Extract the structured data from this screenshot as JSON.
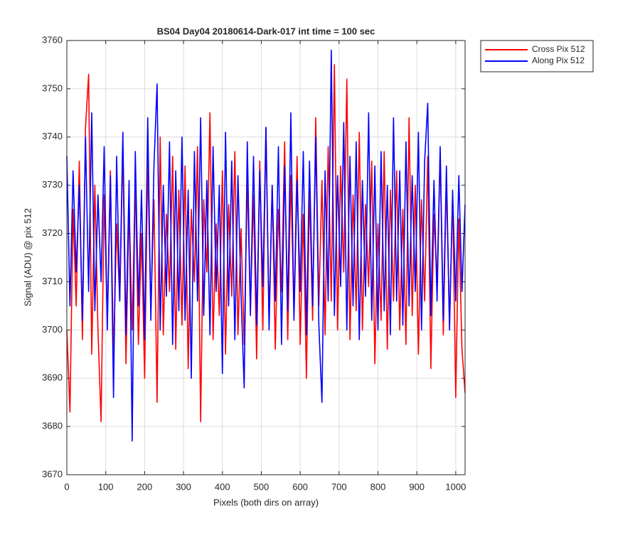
{
  "chart_data": {
    "type": "line",
    "title": "BS04 Day04 20180614-Dark-017 int time = 100 sec",
    "x_label": "Pixels (both dirs on array)",
    "y_label": "Signal (ADU) @ pix 512",
    "x": [
      0,
      8,
      16,
      24,
      32,
      40,
      48,
      56,
      64,
      72,
      80,
      88,
      96,
      104,
      112,
      120,
      128,
      136,
      144,
      152,
      160,
      168,
      176,
      184,
      192,
      200,
      208,
      216,
      224,
      232,
      240,
      248,
      256,
      264,
      272,
      280,
      288,
      296,
      304,
      312,
      320,
      328,
      336,
      344,
      352,
      360,
      368,
      376,
      384,
      392,
      400,
      408,
      416,
      424,
      432,
      440,
      448,
      456,
      464,
      472,
      480,
      488,
      496,
      504,
      512,
      520,
      528,
      536,
      544,
      552,
      560,
      568,
      576,
      584,
      592,
      600,
      608,
      616,
      624,
      632,
      640,
      648,
      656,
      664,
      672,
      680,
      688,
      696,
      704,
      712,
      720,
      728,
      736,
      744,
      752,
      760,
      768,
      776,
      784,
      792,
      800,
      808,
      816,
      824,
      832,
      840,
      848,
      856,
      864,
      872,
      880,
      888,
      896,
      904,
      912,
      920,
      928,
      936,
      944,
      952,
      960,
      968,
      976,
      984,
      992,
      1000,
      1008,
      1016,
      1024
    ],
    "series": [
      {
        "name": "Cross Pix 512",
        "color": "#ff0000",
        "values": [
          3700,
          3683,
          3725,
          3705,
          3735,
          3698,
          3742,
          3753,
          3695,
          3730,
          3700,
          3681,
          3728,
          3702,
          3733,
          3694,
          3722,
          3706,
          3738,
          3693,
          3726,
          3700,
          3731,
          3697,
          3720,
          3690,
          3735,
          3704,
          3727,
          3685,
          3740,
          3699,
          3724,
          3708,
          3736,
          3696,
          3729,
          3701,
          3734,
          3692,
          3725,
          3710,
          3738,
          3681,
          3727,
          3712,
          3745,
          3698,
          3722,
          3703,
          3733,
          3695,
          3726,
          3707,
          3737,
          3699,
          3721,
          3697,
          3731,
          3704,
          3728,
          3694,
          3735,
          3700,
          3742,
          3702,
          3730,
          3696,
          3725,
          3708,
          3739,
          3698,
          3732,
          3703,
          3736,
          3697,
          3724,
          3690,
          3729,
          3702,
          3744,
          3705,
          3731,
          3699,
          3738,
          3706,
          3755,
          3700,
          3734,
          3712,
          3752,
          3698,
          3728,
          3704,
          3741,
          3700,
          3726,
          3709,
          3735,
          3693,
          3722,
          3702,
          3737,
          3696,
          3729,
          3706,
          3733,
          3700,
          3725,
          3697,
          3744,
          3703,
          3730,
          3695,
          3727,
          3706,
          3736,
          3692,
          3724,
          3710,
          3737,
          3699,
          3731,
          3701,
          3728,
          3686,
          3723,
          3696,
          3687
        ]
      },
      {
        "name": "Along Pix 512",
        "color": "#0000ff",
        "values": [
          3736,
          3705,
          3733,
          3712,
          3730,
          3702,
          3740,
          3708,
          3745,
          3704,
          3728,
          3710,
          3738,
          3700,
          3732,
          3686,
          3736,
          3706,
          3741,
          3699,
          3731,
          3677,
          3737,
          3705,
          3729,
          3698,
          3744,
          3702,
          3734,
          3751,
          3700,
          3730,
          3707,
          3739,
          3697,
          3733,
          3704,
          3740,
          3702,
          3729,
          3690,
          3737,
          3706,
          3744,
          3703,
          3731,
          3699,
          3738,
          3708,
          3730,
          3691,
          3741,
          3705,
          3735,
          3698,
          3732,
          3707,
          3688,
          3739,
          3703,
          3736,
          3701,
          3733,
          3709,
          3742,
          3700,
          3730,
          3706,
          3738,
          3697,
          3734,
          3704,
          3745,
          3702,
          3731,
          3708,
          3737,
          3699,
          3735,
          3705,
          3740,
          3701,
          3685,
          3733,
          3706,
          3758,
          3703,
          3732,
          3709,
          3743,
          3700,
          3736,
          3705,
          3739,
          3698,
          3731,
          3707,
          3745,
          3702,
          3734,
          3700,
          3737,
          3704,
          3730,
          3699,
          3744,
          3706,
          3733,
          3701,
          3739,
          3705,
          3732,
          3708,
          3741,
          3700,
          3735,
          3747,
          3703,
          3731,
          3706,
          3738,
          3702,
          3734,
          3700,
          3729,
          3706,
          3732,
          3708,
          3726
        ]
      }
    ],
    "xlim": [
      0,
      1024
    ],
    "ylim": [
      3670,
      3760
    ],
    "xticks": [
      0,
      100,
      200,
      300,
      400,
      500,
      600,
      700,
      800,
      900,
      1000
    ],
    "yticks": [
      3670,
      3680,
      3690,
      3700,
      3710,
      3720,
      3730,
      3740,
      3750,
      3760
    ],
    "grid": true,
    "legend": "outside-upper-right"
  }
}
